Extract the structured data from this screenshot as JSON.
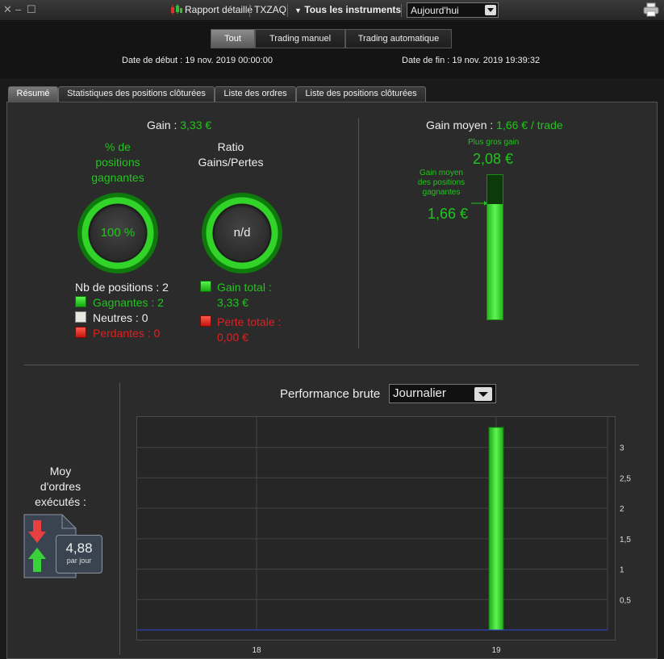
{
  "titlebar": {
    "report_label": "Rapport détaillé",
    "account": "TXZAQ",
    "instruments_label": "Tous les instruments",
    "period_value": "Aujourd'hui"
  },
  "filter_tabs": [
    {
      "label": "Tout",
      "active": true
    },
    {
      "label": "Trading manuel",
      "active": false
    },
    {
      "label": "Trading automatique",
      "active": false
    }
  ],
  "dates": {
    "start_label": "Date de début :",
    "start_value": "19 nov. 2019 00:00:00",
    "end_label": "Date de fin :",
    "end_value": "19 nov. 2019 19:39:32"
  },
  "tabs": [
    {
      "label": "Résumé",
      "active": true
    },
    {
      "label": "Statistiques des positions clôturées",
      "active": false
    },
    {
      "label": "Liste des ordres",
      "active": false
    },
    {
      "label": "Liste des positions clôturées",
      "active": false
    }
  ],
  "summary": {
    "gain_label": "Gain :",
    "gain_value": "3,33 €",
    "win_pct_title": [
      "% de",
      "positions",
      "gagnantes"
    ],
    "win_pct_value": "100 %",
    "ratio_title": [
      "Ratio",
      "Gains/Pertes"
    ],
    "ratio_value": "n/d",
    "positions_label": "Nb de positions : 2",
    "winning_label": "Gagnantes : 2",
    "neutral_label": "Neutres : 0",
    "losing_label": "Perdantes : 0",
    "total_gain_label": "Gain total :",
    "total_gain_value": "3,33 €",
    "total_loss_label": "Perte totale :",
    "total_loss_value": "0,00 €"
  },
  "avg_gain": {
    "title": "Gain moyen :",
    "value": "1,66 € / trade",
    "biggest_label": "Plus gros gain",
    "biggest_value": "2,08 €",
    "avg_win_label": [
      "Gain moyen",
      "des positions",
      "gagnantes"
    ],
    "avg_win_value": "1,66 €",
    "fill_fraction": 0.798
  },
  "orders": {
    "title": [
      "Moy",
      "d'ordres",
      "exécutés :"
    ],
    "value": "4,88",
    "unit": "par jour"
  },
  "performance": {
    "title": "Performance brute",
    "period_value": "Journalier"
  },
  "colors": {
    "green": "#22c41e",
    "red": "#e02020",
    "line": "#3344dd"
  },
  "chart_data": {
    "type": "bar",
    "categories": [
      "18",
      "19"
    ],
    "values": [
      0,
      3.33
    ],
    "ytick_labels": [
      "0,5",
      "1",
      "1,5",
      "2",
      "2,5",
      "3"
    ],
    "yticks": [
      0.5,
      1,
      1.5,
      2,
      2.5,
      3
    ],
    "ylim": [
      0,
      3.5
    ],
    "grid": true
  }
}
